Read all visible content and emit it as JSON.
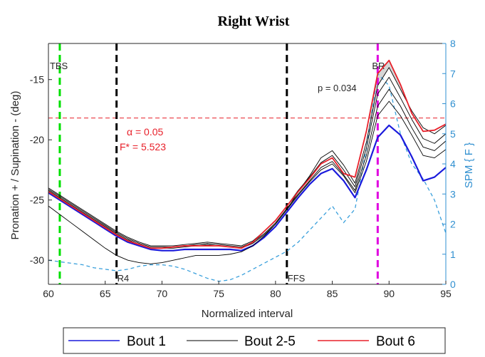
{
  "chart_data": {
    "type": "line",
    "title": "Right Wrist",
    "xlabel": "Normalized interval",
    "ylabel": "Pronation + / Supination - (deg)",
    "ylabel_right": "SPM { F }",
    "xlim": [
      60,
      95
    ],
    "ylim": [
      -32,
      -12
    ],
    "ylim_right": [
      0,
      8
    ],
    "xticks": [
      60,
      65,
      70,
      75,
      80,
      85,
      90,
      95
    ],
    "yticks": [
      -30,
      -25,
      -20,
      -15
    ],
    "yticks_right": [
      0,
      1,
      2,
      3,
      4,
      5,
      6,
      7,
      8
    ],
    "events": [
      {
        "label": "TBS",
        "x": 61,
        "color": "#00e000"
      },
      {
        "label": "R4",
        "x": 66,
        "color": "#000000"
      },
      {
        "label": "FFS",
        "x": 81,
        "color": "#000000"
      },
      {
        "label": "BR",
        "x": 89,
        "color": "#e000e0"
      }
    ],
    "threshold": {
      "y_right": 5.523,
      "alpha_text": "α = 0.05",
      "f_text": "F* = 5.523",
      "color": "#e8202a"
    },
    "p_value_text": "p = 0.034",
    "x": [
      60,
      61,
      62,
      63,
      64,
      65,
      66,
      67,
      68,
      69,
      70,
      71,
      72,
      73,
      74,
      75,
      76,
      77,
      78,
      79,
      80,
      81,
      82,
      83,
      84,
      85,
      86,
      87,
      88,
      89,
      90,
      91,
      92,
      93,
      94,
      95
    ],
    "series": [
      {
        "name": "Bout 1",
        "color": "#1a1adc",
        "width": 2.2,
        "values": [
          -24.4,
          -25.0,
          -25.6,
          -26.2,
          -26.8,
          -27.4,
          -28.0,
          -28.5,
          -28.8,
          -29.1,
          -29.2,
          -29.2,
          -29.1,
          -29.1,
          -29.1,
          -29.1,
          -29.1,
          -29.2,
          -28.8,
          -28.1,
          -27.2,
          -26.0,
          -24.8,
          -23.7,
          -22.8,
          -22.4,
          -23.4,
          -24.8,
          -22.5,
          -19.8,
          -18.8,
          -19.6,
          -21.4,
          -23.4,
          -23.1,
          -22.3
        ]
      },
      {
        "name": "Bout 2-5",
        "color": "#000000",
        "width": 0.9,
        "values": [
          -24.2,
          -24.8,
          -25.4,
          -26.0,
          -26.6,
          -27.2,
          -27.8,
          -28.3,
          -28.7,
          -29.0,
          -29.0,
          -29.0,
          -28.9,
          -28.8,
          -28.7,
          -28.8,
          -28.9,
          -29.0,
          -28.6,
          -27.9,
          -27.0,
          -25.8,
          -24.6,
          -23.5,
          -22.5,
          -22.0,
          -23.0,
          -24.4,
          -21.8,
          -18.0,
          -16.8,
          -18.0,
          -19.6,
          -21.3,
          -21.5,
          -20.8
        ]
      },
      {
        "name": "",
        "color": "#000000",
        "width": 0.9,
        "values": [
          -24.1,
          -24.7,
          -25.3,
          -25.9,
          -26.5,
          -27.1,
          -27.7,
          -28.2,
          -28.6,
          -28.9,
          -28.9,
          -28.9,
          -28.8,
          -28.7,
          -28.6,
          -28.7,
          -28.8,
          -28.9,
          -28.5,
          -27.8,
          -26.9,
          -25.7,
          -24.5,
          -23.4,
          -22.3,
          -21.8,
          -22.9,
          -24.2,
          -21.3,
          -17.2,
          -15.8,
          -17.2,
          -19.0,
          -20.6,
          -20.9,
          -20.1
        ]
      },
      {
        "name": "",
        "color": "#000000",
        "width": 0.9,
        "values": [
          -24.0,
          -24.6,
          -25.2,
          -25.8,
          -26.4,
          -27.0,
          -27.6,
          -28.1,
          -28.5,
          -28.8,
          -28.8,
          -28.8,
          -28.7,
          -28.6,
          -28.5,
          -28.6,
          -28.7,
          -28.8,
          -28.4,
          -27.6,
          -26.7,
          -25.5,
          -24.2,
          -23.1,
          -21.9,
          -21.3,
          -22.5,
          -23.9,
          -20.7,
          -16.2,
          -14.8,
          -16.5,
          -18.3,
          -19.9,
          -20.3,
          -19.5
        ]
      },
      {
        "name": "",
        "color": "#000000",
        "width": 0.9,
        "values": [
          -25.5,
          -26.2,
          -26.9,
          -27.6,
          -28.3,
          -29.0,
          -29.6,
          -30.0,
          -30.2,
          -30.3,
          -30.2,
          -30.0,
          -29.8,
          -29.6,
          -29.6,
          -29.6,
          -29.5,
          -29.3,
          -28.8,
          -28.0,
          -27.0,
          -25.8,
          -24.3,
          -23.0,
          -21.5,
          -20.9,
          -22.1,
          -23.6,
          -20.2,
          -15.5,
          -14.0,
          -15.8,
          -17.6,
          -19.0,
          -19.5,
          -18.8
        ]
      },
      {
        "name": "Bout 6",
        "color": "#e8202a",
        "width": 1.8,
        "values": [
          -24.3,
          -24.9,
          -25.5,
          -26.1,
          -26.7,
          -27.3,
          -27.9,
          -28.4,
          -28.7,
          -29.0,
          -29.0,
          -28.9,
          -28.8,
          -28.8,
          -28.8,
          -28.8,
          -28.9,
          -29.0,
          -28.5,
          -27.6,
          -26.7,
          -25.5,
          -24.3,
          -23.2,
          -22.0,
          -21.5,
          -22.8,
          -23.1,
          -19.3,
          -14.5,
          -13.4,
          -15.4,
          -17.8,
          -19.3,
          -19.2,
          -18.7
        ]
      }
    ],
    "spm": {
      "name": "SPM { F }",
      "color": "#3aa0dc",
      "values": [
        0.8,
        0.75,
        0.7,
        0.65,
        0.55,
        0.5,
        0.45,
        0.5,
        0.6,
        0.65,
        0.65,
        0.6,
        0.5,
        0.35,
        0.2,
        0.1,
        0.15,
        0.3,
        0.5,
        0.7,
        0.9,
        1.1,
        1.4,
        1.8,
        2.2,
        2.6,
        2.05,
        2.5,
        4.5,
        7.0,
        6.6,
        5.0,
        4.0,
        3.5,
        2.8,
        1.7
      ]
    },
    "legend_position": "bottom-outside"
  }
}
